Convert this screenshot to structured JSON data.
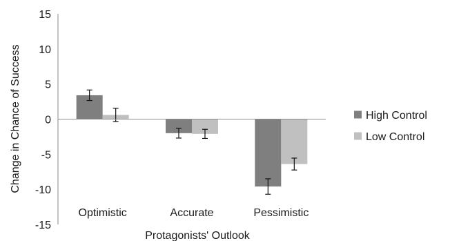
{
  "chart_data": {
    "type": "bar",
    "xlabel": "Protagonists' Outlook",
    "ylabel": "Change in Chance of Success",
    "ylim": [
      -15,
      15
    ],
    "yticks": [
      15,
      10,
      5,
      0,
      -5,
      -10,
      -15
    ],
    "categories": [
      "Optimistic",
      "Accurate",
      "Pessimistic"
    ],
    "series": [
      {
        "name": "High Control",
        "color": "#7f7f7f",
        "values": [
          3.4,
          -2.0,
          -9.6
        ],
        "errors": [
          0.75,
          0.7,
          1.1
        ]
      },
      {
        "name": "Low Control",
        "color": "#c0c0c0",
        "values": [
          0.6,
          -2.1,
          -6.4
        ],
        "errors": [
          0.95,
          0.65,
          0.85
        ]
      }
    ],
    "legend_position": "right",
    "grid": false
  }
}
